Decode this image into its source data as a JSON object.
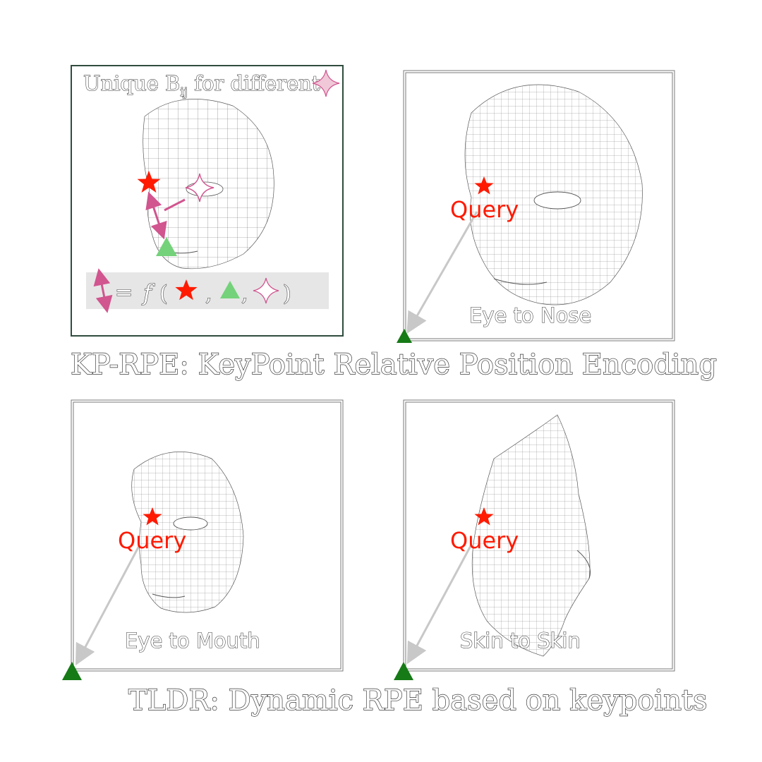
{
  "colors": {
    "query_star": "#ff1a00",
    "key_triangle": "#167a16",
    "light_triangle": "#74d27a",
    "pink": "#d1558f",
    "panel_border_dark": "#2f4d3e",
    "formula_bg": "#e6e6e6",
    "arrow_gray": "#c8c8c8"
  },
  "panel_tl": {
    "caption_prefix": "Unique B",
    "caption_subscript": "ij",
    "caption_suffix": " for different",
    "formula_eq": "=",
    "formula_f": "f",
    "formula_open": "(",
    "formula_comma1": ",",
    "formula_comma2": ",",
    "formula_close": ")"
  },
  "panel_tr": {
    "query_label": "Query",
    "relation_label": "Eye to Nose"
  },
  "panel_bl": {
    "query_label": "Query",
    "relation_label": "Eye to Mouth"
  },
  "panel_br": {
    "query_label": "Query",
    "relation_label": "Skin to Skin"
  },
  "headline_top": "KP-RPE: KeyPoint Relative Position Encoding",
  "headline_bottom": "TLDR: Dynamic RPE based on keypoints",
  "icons": [
    "red-star-icon",
    "green-triangle-icon",
    "pink-sparkle-icon",
    "double-arrow-icon",
    "face-mesh-icon"
  ]
}
